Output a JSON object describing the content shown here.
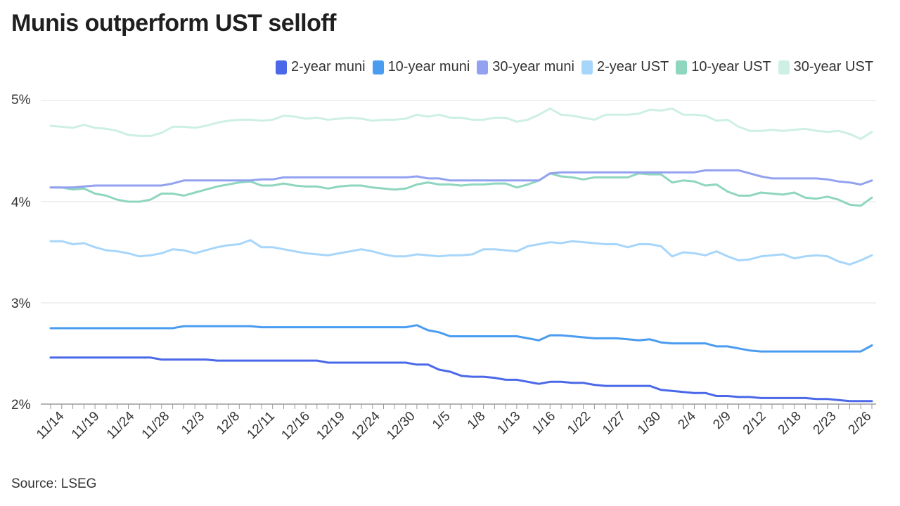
{
  "title": "Munis outperform UST selloff",
  "source": "Source: LSEG",
  "chart_data": {
    "type": "line",
    "title": "Munis outperform UST selloff",
    "ylim": [
      2,
      5
    ],
    "y_ticks": [
      "2%",
      "3%",
      "4%",
      "5%"
    ],
    "y_tick_values": [
      2,
      3,
      4,
      5
    ],
    "x_tick_labels": [
      "11/14",
      "11/19",
      "11/24",
      "11/28",
      "12/3",
      "12/8",
      "12/11",
      "12/16",
      "12/19",
      "12/24",
      "12/30",
      "1/5",
      "1/8",
      "1/13",
      "1/16",
      "1/22",
      "1/27",
      "1/30",
      "2/4",
      "2/9",
      "2/12",
      "2/18",
      "2/23",
      "2/26"
    ],
    "grid": true,
    "legend_position": "top-right",
    "categories": [
      "11/14",
      "11/15",
      "11/18",
      "11/19",
      "11/20",
      "11/21",
      "11/22",
      "11/25",
      "11/26",
      "11/27",
      "11/28",
      "11/29",
      "12/2",
      "12/3",
      "12/4",
      "12/5",
      "12/6",
      "12/9",
      "12/10",
      "12/11",
      "12/12",
      "12/13",
      "12/16",
      "12/17",
      "12/18",
      "12/19",
      "12/20",
      "12/23",
      "12/24",
      "12/26",
      "12/27",
      "12/30",
      "12/31",
      "1/2",
      "1/3",
      "1/5",
      "1/6",
      "1/7",
      "1/8",
      "1/10",
      "1/13",
      "1/14",
      "1/15",
      "1/16",
      "1/17",
      "1/21",
      "1/22",
      "1/23",
      "1/24",
      "1/27",
      "1/28",
      "1/29",
      "1/30",
      "1/31",
      "2/3",
      "2/4",
      "2/5",
      "2/6",
      "2/7",
      "2/9",
      "2/10",
      "2/11",
      "2/12",
      "2/13",
      "2/14",
      "2/18",
      "2/19",
      "2/20",
      "2/21",
      "2/23",
      "2/24",
      "2/25",
      "2/26",
      "2/27",
      "2/28"
    ],
    "series": [
      {
        "name": "2-year muni",
        "color": "#4a68e8",
        "values": [
          2.46,
          2.46,
          2.46,
          2.46,
          2.46,
          2.46,
          2.46,
          2.46,
          2.46,
          2.46,
          2.44,
          2.44,
          2.44,
          2.44,
          2.44,
          2.43,
          2.43,
          2.43,
          2.43,
          2.43,
          2.43,
          2.43,
          2.43,
          2.43,
          2.43,
          2.41,
          2.41,
          2.41,
          2.41,
          2.41,
          2.41,
          2.41,
          2.41,
          2.39,
          2.39,
          2.34,
          2.32,
          2.28,
          2.27,
          2.27,
          2.26,
          2.24,
          2.24,
          2.22,
          2.2,
          2.22,
          2.22,
          2.21,
          2.21,
          2.19,
          2.18,
          2.18,
          2.18,
          2.18,
          2.18,
          2.14,
          2.13,
          2.12,
          2.11,
          2.11,
          2.08,
          2.08,
          2.07,
          2.07,
          2.06,
          2.06,
          2.06,
          2.06,
          2.06,
          2.05,
          2.05,
          2.04,
          2.03,
          2.03,
          2.03
        ]
      },
      {
        "name": "10-year muni",
        "color": "#4a9cf0",
        "values": [
          2.75,
          2.75,
          2.75,
          2.75,
          2.75,
          2.75,
          2.75,
          2.75,
          2.75,
          2.75,
          2.75,
          2.75,
          2.77,
          2.77,
          2.77,
          2.77,
          2.77,
          2.77,
          2.77,
          2.76,
          2.76,
          2.76,
          2.76,
          2.76,
          2.76,
          2.76,
          2.76,
          2.76,
          2.76,
          2.76,
          2.76,
          2.76,
          2.76,
          2.78,
          2.73,
          2.71,
          2.67,
          2.67,
          2.67,
          2.67,
          2.67,
          2.67,
          2.67,
          2.65,
          2.63,
          2.68,
          2.68,
          2.67,
          2.66,
          2.65,
          2.65,
          2.65,
          2.64,
          2.63,
          2.64,
          2.61,
          2.6,
          2.6,
          2.6,
          2.6,
          2.57,
          2.57,
          2.55,
          2.53,
          2.52,
          2.52,
          2.52,
          2.52,
          2.52,
          2.52,
          2.52,
          2.52,
          2.52,
          2.52,
          2.58
        ]
      },
      {
        "name": "30-year muni",
        "color": "#93a2f0",
        "values": [
          4.14,
          4.14,
          4.14,
          4.15,
          4.16,
          4.16,
          4.16,
          4.16,
          4.16,
          4.16,
          4.16,
          4.18,
          4.21,
          4.21,
          4.21,
          4.21,
          4.21,
          4.21,
          4.21,
          4.22,
          4.22,
          4.24,
          4.24,
          4.24,
          4.24,
          4.24,
          4.24,
          4.24,
          4.24,
          4.24,
          4.24,
          4.24,
          4.24,
          4.25,
          4.23,
          4.23,
          4.21,
          4.21,
          4.21,
          4.21,
          4.21,
          4.21,
          4.21,
          4.21,
          4.21,
          4.28,
          4.29,
          4.29,
          4.29,
          4.29,
          4.29,
          4.29,
          4.29,
          4.29,
          4.29,
          4.29,
          4.29,
          4.29,
          4.29,
          4.31,
          4.31,
          4.31,
          4.31,
          4.28,
          4.25,
          4.23,
          4.23,
          4.23,
          4.23,
          4.23,
          4.22,
          4.2,
          4.19,
          4.17,
          4.21
        ]
      },
      {
        "name": "2-year UST",
        "color": "#a7d6fb",
        "values": [
          3.61,
          3.61,
          3.58,
          3.59,
          3.55,
          3.52,
          3.51,
          3.49,
          3.46,
          3.47,
          3.49,
          3.53,
          3.52,
          3.49,
          3.52,
          3.55,
          3.57,
          3.58,
          3.62,
          3.55,
          3.55,
          3.53,
          3.51,
          3.49,
          3.48,
          3.47,
          3.49,
          3.51,
          3.53,
          3.51,
          3.48,
          3.46,
          3.46,
          3.48,
          3.47,
          3.46,
          3.47,
          3.47,
          3.48,
          3.53,
          3.53,
          3.52,
          3.51,
          3.56,
          3.58,
          3.6,
          3.59,
          3.61,
          3.6,
          3.59,
          3.58,
          3.58,
          3.55,
          3.58,
          3.58,
          3.56,
          3.46,
          3.5,
          3.49,
          3.47,
          3.51,
          3.46,
          3.42,
          3.43,
          3.46,
          3.47,
          3.48,
          3.44,
          3.46,
          3.47,
          3.46,
          3.41,
          3.38,
          3.42,
          3.47
        ]
      },
      {
        "name": "10-year UST",
        "color": "#8fd6be",
        "values": [
          4.14,
          4.14,
          4.12,
          4.13,
          4.08,
          4.06,
          4.02,
          4.0,
          4.0,
          4.02,
          4.08,
          4.08,
          4.06,
          4.09,
          4.12,
          4.15,
          4.17,
          4.19,
          4.2,
          4.16,
          4.16,
          4.18,
          4.16,
          4.15,
          4.15,
          4.13,
          4.15,
          4.16,
          4.16,
          4.14,
          4.13,
          4.12,
          4.13,
          4.17,
          4.19,
          4.17,
          4.17,
          4.16,
          4.17,
          4.17,
          4.18,
          4.18,
          4.14,
          4.17,
          4.21,
          4.28,
          4.25,
          4.24,
          4.22,
          4.24,
          4.24,
          4.24,
          4.24,
          4.28,
          4.27,
          4.27,
          4.19,
          4.21,
          4.2,
          4.16,
          4.17,
          4.1,
          4.06,
          4.06,
          4.09,
          4.08,
          4.07,
          4.09,
          4.04,
          4.03,
          4.05,
          4.02,
          3.97,
          3.96,
          4.04
        ]
      },
      {
        "name": "30-year UST",
        "color": "#cdf0e3",
        "values": [
          4.75,
          4.74,
          4.73,
          4.76,
          4.73,
          4.72,
          4.7,
          4.66,
          4.65,
          4.65,
          4.68,
          4.74,
          4.74,
          4.73,
          4.75,
          4.78,
          4.8,
          4.81,
          4.81,
          4.8,
          4.81,
          4.85,
          4.84,
          4.82,
          4.83,
          4.81,
          4.82,
          4.83,
          4.82,
          4.8,
          4.81,
          4.81,
          4.82,
          4.86,
          4.84,
          4.86,
          4.83,
          4.83,
          4.81,
          4.81,
          4.83,
          4.83,
          4.79,
          4.81,
          4.86,
          4.92,
          4.86,
          4.85,
          4.83,
          4.81,
          4.86,
          4.86,
          4.86,
          4.87,
          4.91,
          4.9,
          4.92,
          4.86,
          4.86,
          4.85,
          4.8,
          4.81,
          4.74,
          4.7,
          4.7,
          4.71,
          4.7,
          4.71,
          4.72,
          4.7,
          4.69,
          4.7,
          4.67,
          4.62,
          4.69
        ]
      }
    ]
  }
}
